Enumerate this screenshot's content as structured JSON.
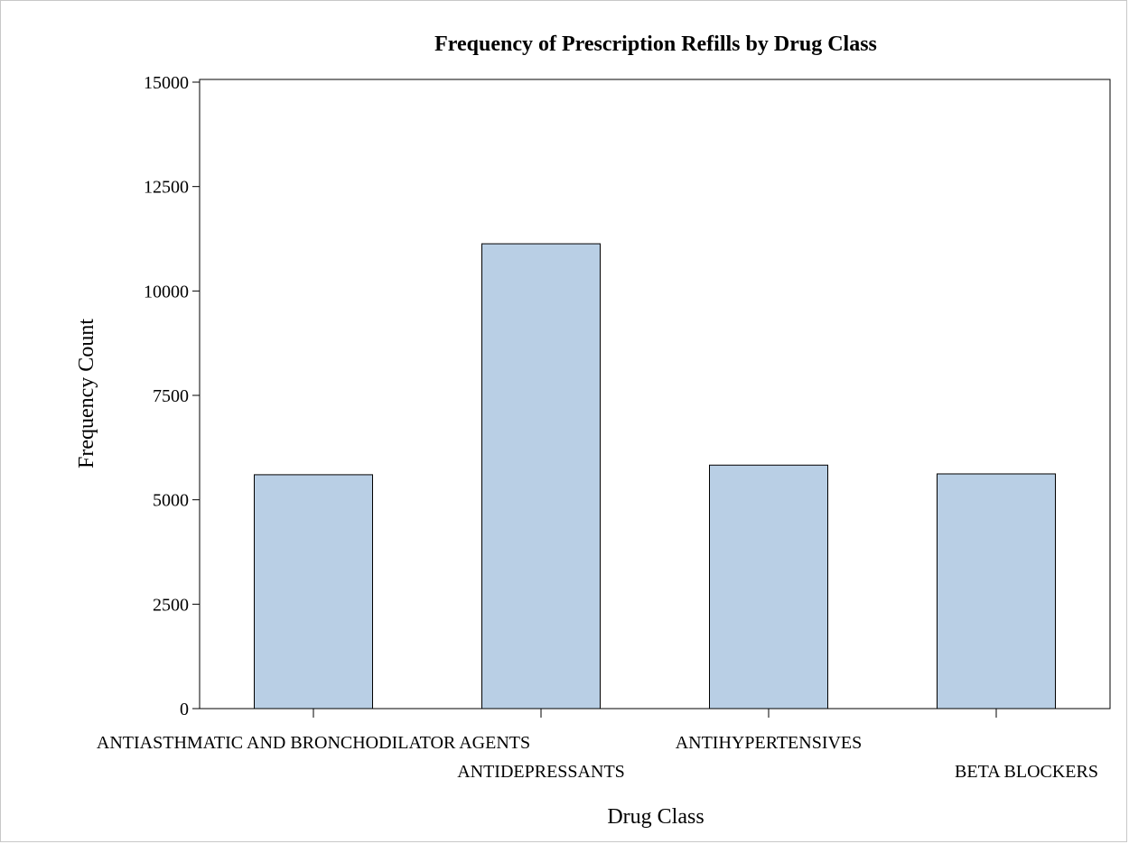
{
  "chart_data": {
    "type": "bar",
    "title": "Frequency of Prescription Refills by Drug Class",
    "xlabel": "Drug Class",
    "ylabel": "Frequency Count",
    "categories": [
      "ANTIASTHMATIC AND BRONCHODILATOR AGENTS",
      "ANTIDEPRESSANTS",
      "ANTIHYPERTENSIVES",
      "BETA BLOCKERS"
    ],
    "values": [
      5600,
      11130,
      5830,
      5620
    ],
    "ylim": [
      0,
      15000
    ],
    "yticks": [
      0,
      2500,
      5000,
      7500,
      10000,
      12500,
      15000
    ],
    "ytick_labels": [
      "0",
      "2500",
      "5000",
      "7500",
      "10000",
      "12500",
      "15000"
    ],
    "grid": false,
    "legend": "none",
    "colors": {
      "bar_fill": "#b9cfe5",
      "bar_stroke": "#000000",
      "axis": "#000000",
      "frame_border": "#c8c8c8"
    }
  }
}
